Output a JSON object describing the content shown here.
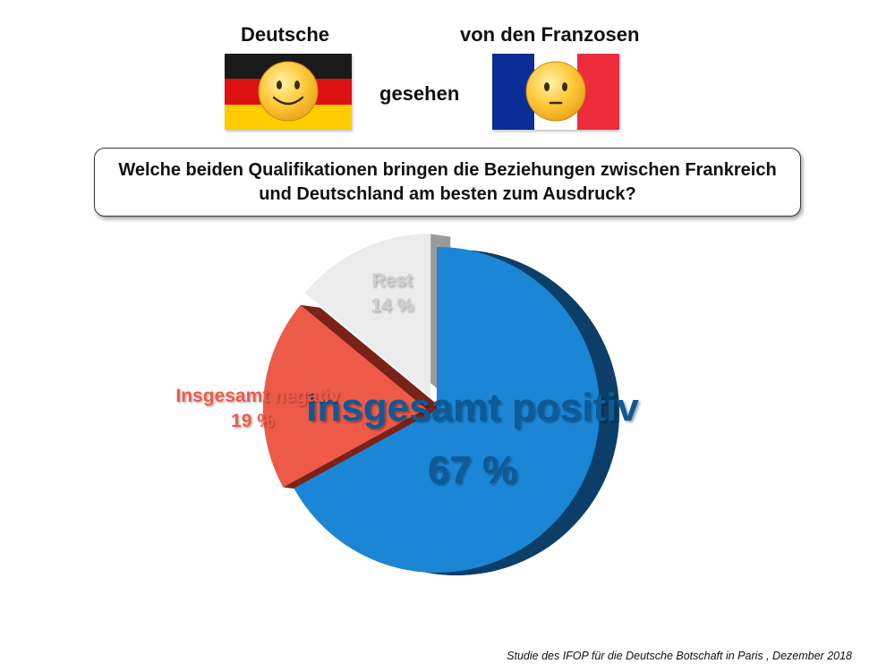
{
  "header": {
    "left_label": "Deutsche",
    "right_label": "von den Franzosen",
    "middle_label": "gesehen"
  },
  "flags": {
    "germany_colors": [
      "#1a1a1a",
      "#dd1111",
      "#ffcc00"
    ],
    "france_colors": [
      "#0b2d96",
      "#ffffff",
      "#ee2b3b"
    ],
    "germany_face_icon": "smiling-face-icon",
    "france_face_icon": "neutral-face-icon"
  },
  "question": "Welche beiden Qualifikationen bringen die Beziehungen zwischen Frankreich und Deutschland am besten zum Ausdruck?",
  "chart_data": {
    "type": "pie",
    "slices": [
      {
        "label": "Insgesamt positiv",
        "value_label": "67 %",
        "value": 67,
        "color": "#1b86d6",
        "side_color": "#0b3f6a"
      },
      {
        "label": "Insgesamt negativ",
        "value_label": "19 %",
        "value": 19,
        "color": "#ee5a48",
        "side_color": "#7a2219"
      },
      {
        "label": "Rest",
        "value_label": "14 %",
        "value": 14,
        "color": "#ececec",
        "side_color": "#9a9a9a"
      }
    ]
  },
  "source": "Studie des IFOP für die Deutsche Botschaft in Paris , Dezember 2018"
}
